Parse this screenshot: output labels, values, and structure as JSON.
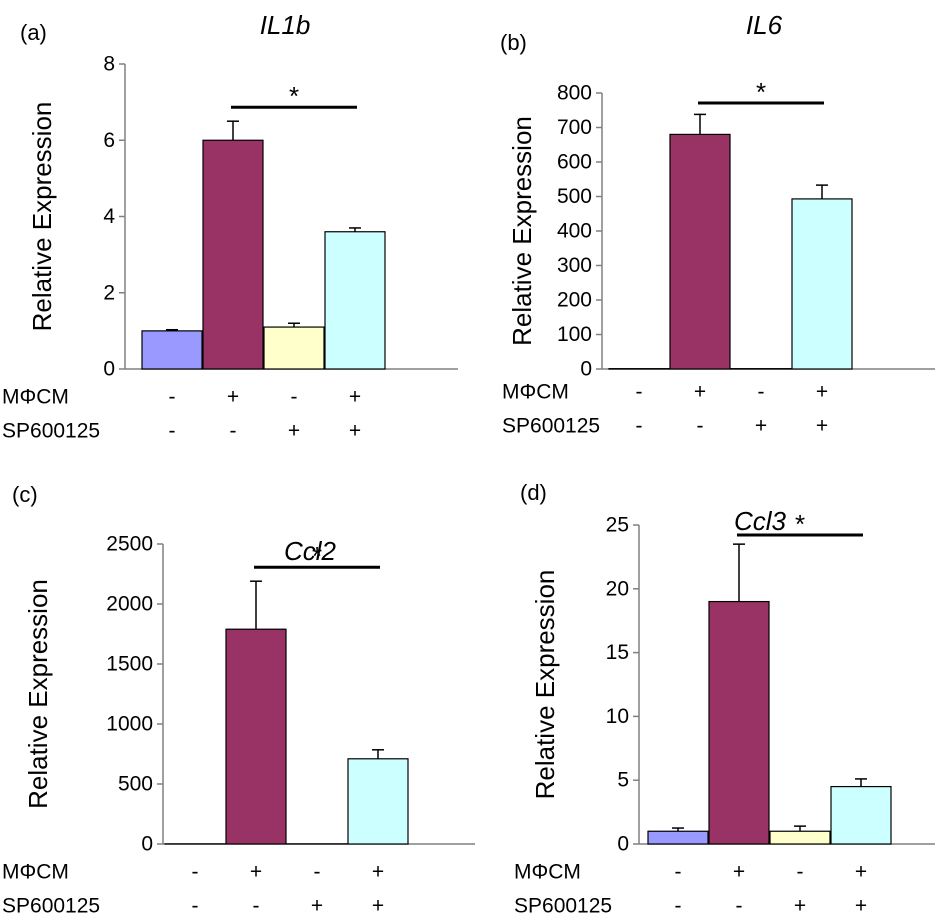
{
  "condition_labels": [
    "MΦCM",
    "SP600125"
  ],
  "charts_meta": {
    "bar_colors": [
      "#9999ff",
      "#993366",
      "#ffffcc",
      "#ccffff"
    ],
    "error_bars": "upper"
  },
  "chart_data": [
    {
      "panel": "(a)",
      "type": "bar",
      "title": "IL1b",
      "ylabel": "Relative Expression",
      "ylim": [
        0,
        8
      ],
      "yticks": [
        0,
        2,
        4,
        6,
        8
      ],
      "categories": [
        "1",
        "2",
        "3",
        "4"
      ],
      "values": [
        1.0,
        6.0,
        1.1,
        3.6
      ],
      "errors": [
        0.03,
        0.5,
        0.1,
        0.1
      ],
      "conditions": {
        "MΦCM": [
          "-",
          "+",
          "-",
          "+"
        ],
        "SP600125": [
          "-",
          "-",
          "+",
          "+"
        ]
      },
      "significance": {
        "from": 1,
        "to": 3,
        "label": "*"
      }
    },
    {
      "panel": "(b)",
      "type": "bar",
      "title": "IL6",
      "ylabel": "Relative Expression",
      "ylim": [
        0,
        800
      ],
      "yticks": [
        0,
        100,
        200,
        300,
        400,
        500,
        600,
        700,
        800
      ],
      "categories": [
        "1",
        "2",
        "3",
        "4"
      ],
      "values": [
        1,
        680,
        1,
        493
      ],
      "errors": [
        0,
        58,
        0,
        40
      ],
      "conditions": {
        "MΦCM": [
          "-",
          "+",
          "-",
          "+"
        ],
        "SP600125": [
          "-",
          "-",
          "+",
          "+"
        ]
      },
      "significance": {
        "from": 1,
        "to": 3,
        "label": "*"
      }
    },
    {
      "panel": "(c)",
      "type": "bar",
      "title": "Ccl2",
      "ylabel": "Relative Expression",
      "ylim": [
        0,
        2500
      ],
      "yticks": [
        0,
        500,
        1000,
        1500,
        2000,
        2500
      ],
      "categories": [
        "1",
        "2",
        "3",
        "4"
      ],
      "values": [
        1,
        1790,
        1,
        710
      ],
      "errors": [
        0,
        400,
        0,
        75
      ],
      "conditions": {
        "MΦCM": [
          "-",
          "+",
          "-",
          "+"
        ],
        "SP600125": [
          "-",
          "-",
          "+",
          "+"
        ]
      },
      "significance": {
        "from": 1,
        "to": 3,
        "label": "*"
      }
    },
    {
      "panel": "(d)",
      "type": "bar",
      "title": "Ccl3",
      "ylabel": "Relative Expression",
      "ylim": [
        0,
        25
      ],
      "yticks": [
        0,
        5,
        10,
        15,
        20,
        25
      ],
      "categories": [
        "1",
        "2",
        "3",
        "4"
      ],
      "values": [
        1.0,
        19.0,
        1.0,
        4.5
      ],
      "errors": [
        0.25,
        4.5,
        0.4,
        0.6
      ],
      "conditions": {
        "MΦCM": [
          "-",
          "+",
          "-",
          "+"
        ],
        "SP600125": [
          "-",
          "-",
          "+",
          "+"
        ]
      },
      "significance": {
        "from": 1,
        "to": 3,
        "label": "*"
      }
    }
  ]
}
